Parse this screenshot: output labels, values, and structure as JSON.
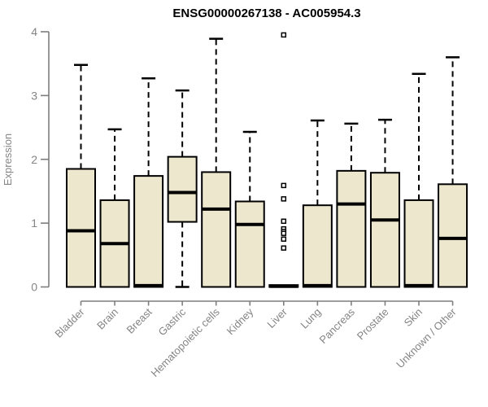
{
  "chart_data": {
    "type": "box",
    "title": "ENSG00000267138 - AC005954.3",
    "ylabel": "Expression",
    "xlabel": "",
    "ylim": [
      0,
      4
    ],
    "yticks": [
      0,
      1,
      2,
      3,
      4
    ],
    "grid": false,
    "legend": null,
    "categories": [
      "Bladder",
      "Brain",
      "Breast",
      "Gastric",
      "Hematopoietic cells",
      "Kidney",
      "Liver",
      "Lung",
      "Pancreas",
      "Prostate",
      "Skin",
      "Unknown / Other"
    ],
    "boxes": [
      {
        "category": "Bladder",
        "whisker_low": 0,
        "q1": 0,
        "median": 0.88,
        "q3": 1.85,
        "whisker_high": 3.48,
        "outliers": []
      },
      {
        "category": "Brain",
        "whisker_low": 0,
        "q1": 0,
        "median": 0.68,
        "q3": 1.36,
        "whisker_high": 2.47,
        "outliers": []
      },
      {
        "category": "Breast",
        "whisker_low": 0,
        "q1": 0,
        "median": 0.02,
        "q3": 1.74,
        "whisker_high": 3.27,
        "outliers": []
      },
      {
        "category": "Gastric",
        "whisker_low": 0,
        "q1": 1.02,
        "median": 1.48,
        "q3": 2.04,
        "whisker_high": 3.08,
        "outliers": []
      },
      {
        "category": "Hematopoietic cells",
        "whisker_low": 0,
        "q1": 0,
        "median": 1.22,
        "q3": 1.8,
        "whisker_high": 3.89,
        "outliers": []
      },
      {
        "category": "Kidney",
        "whisker_low": 0,
        "q1": 0,
        "median": 0.98,
        "q3": 1.34,
        "whisker_high": 2.43,
        "outliers": []
      },
      {
        "category": "Liver",
        "whisker_low": 0,
        "q1": 0,
        "median": 0.01,
        "q3": 0.03,
        "whisker_high": 0.03,
        "outliers": [
          3.95,
          1.59,
          1.38,
          1.03,
          0.91,
          0.87,
          0.84,
          0.75,
          0.61
        ]
      },
      {
        "category": "Lung",
        "whisker_low": 0,
        "q1": 0,
        "median": 0.02,
        "q3": 1.28,
        "whisker_high": 2.61,
        "outliers": []
      },
      {
        "category": "Pancreas",
        "whisker_low": 0,
        "q1": 0,
        "median": 1.3,
        "q3": 1.82,
        "whisker_high": 2.56,
        "outliers": []
      },
      {
        "category": "Prostate",
        "whisker_low": 0,
        "q1": 0,
        "median": 1.05,
        "q3": 1.79,
        "whisker_high": 2.62,
        "outliers": []
      },
      {
        "category": "Skin",
        "whisker_low": 0,
        "q1": 0,
        "median": 0.02,
        "q3": 1.36,
        "whisker_high": 3.34,
        "outliers": []
      },
      {
        "category": "Unknown / Other",
        "whisker_low": 0,
        "q1": 0,
        "median": 0.76,
        "q3": 1.61,
        "whisker_high": 3.6,
        "outliers": []
      }
    ],
    "colors": {
      "box_fill": "#EDE8CD",
      "box_stroke": "#000000",
      "median": "#000000",
      "whisker": "#000000",
      "outlier_fill": "#ffffff",
      "outlier_stroke": "#000000",
      "axis": "#7e7e7e",
      "axis_text": "#848484",
      "title_text": "#000000",
      "background": "#ffffff"
    }
  }
}
